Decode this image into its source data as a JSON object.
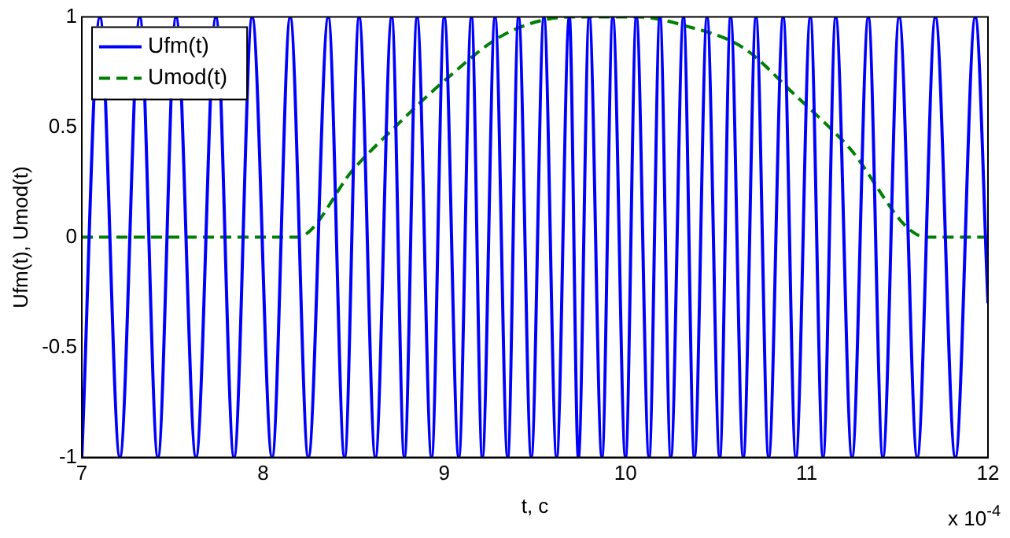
{
  "chart_data": {
    "type": "line",
    "xlabel": "t, c",
    "ylabel": "Ufm(t), Umod(t)",
    "annotations": [
      "x 10$^{-4}$"
    ],
    "xlim": [
      7,
      12
    ],
    "xticks": [
      7,
      8,
      9,
      10,
      11,
      12
    ],
    "ylim": [
      -1,
      1
    ],
    "yticks": [
      -1,
      -0.5,
      0,
      0.5,
      1
    ],
    "grid": false,
    "legend": "top left",
    "marker": "none",
    "series": [
      {
        "name": "Ufm(t)",
        "color": "#0000ff",
        "line_style": "solid",
        "x": [
          7.0,
          7.1,
          7.21,
          7.32,
          7.42,
          7.52,
          7.63,
          7.74,
          7.84,
          7.94,
          8.05,
          8.15,
          8.25,
          8.36,
          8.45,
          8.53,
          8.62,
          8.71,
          8.78,
          8.85,
          8.93,
          9.0,
          9.08,
          9.15,
          9.21,
          9.28,
          9.35,
          9.41,
          9.48,
          9.55,
          9.62,
          9.69,
          9.74,
          9.8,
          9.87,
          9.93,
          10.0,
          10.06,
          10.13,
          10.19,
          10.25,
          10.32,
          10.38,
          10.45,
          10.52,
          10.58,
          10.65,
          10.72,
          10.79,
          10.87,
          10.94,
          11.02,
          11.09,
          11.16,
          11.25,
          11.34,
          11.42,
          11.51,
          11.61,
          11.71,
          11.82,
          11.93,
          12.0
        ],
        "values": [
          -1,
          1,
          -1,
          1,
          -1,
          1,
          -1,
          1,
          -1,
          1,
          -1,
          1,
          -1,
          1,
          -1,
          1,
          -1,
          1,
          -1,
          1,
          -1,
          1,
          -1,
          1,
          -1,
          1,
          -1,
          1,
          -1,
          1,
          -1,
          1,
          -1,
          1,
          -1,
          1,
          -1,
          1,
          -1,
          1,
          -1,
          1,
          -1,
          1,
          -1,
          1,
          -1,
          1,
          -1,
          1,
          -1,
          1,
          -1,
          1,
          -1,
          1,
          -1,
          1,
          -1,
          1,
          -1,
          1,
          -0.3
        ]
      },
      {
        "name": "Umod(t)",
        "color": "#008000",
        "line_style": "dashed",
        "x": [
          7,
          8.19,
          8.5,
          8.74,
          9.0,
          9.33,
          9.7,
          10.07,
          10.33,
          10.65,
          10.93,
          11.22,
          11.66,
          12
        ],
        "values": [
          0,
          0,
          0.31,
          0.51,
          0.71,
          0.92,
          1,
          1,
          0.96,
          0.86,
          0.65,
          0.42,
          0,
          0
        ]
      }
    ]
  }
}
